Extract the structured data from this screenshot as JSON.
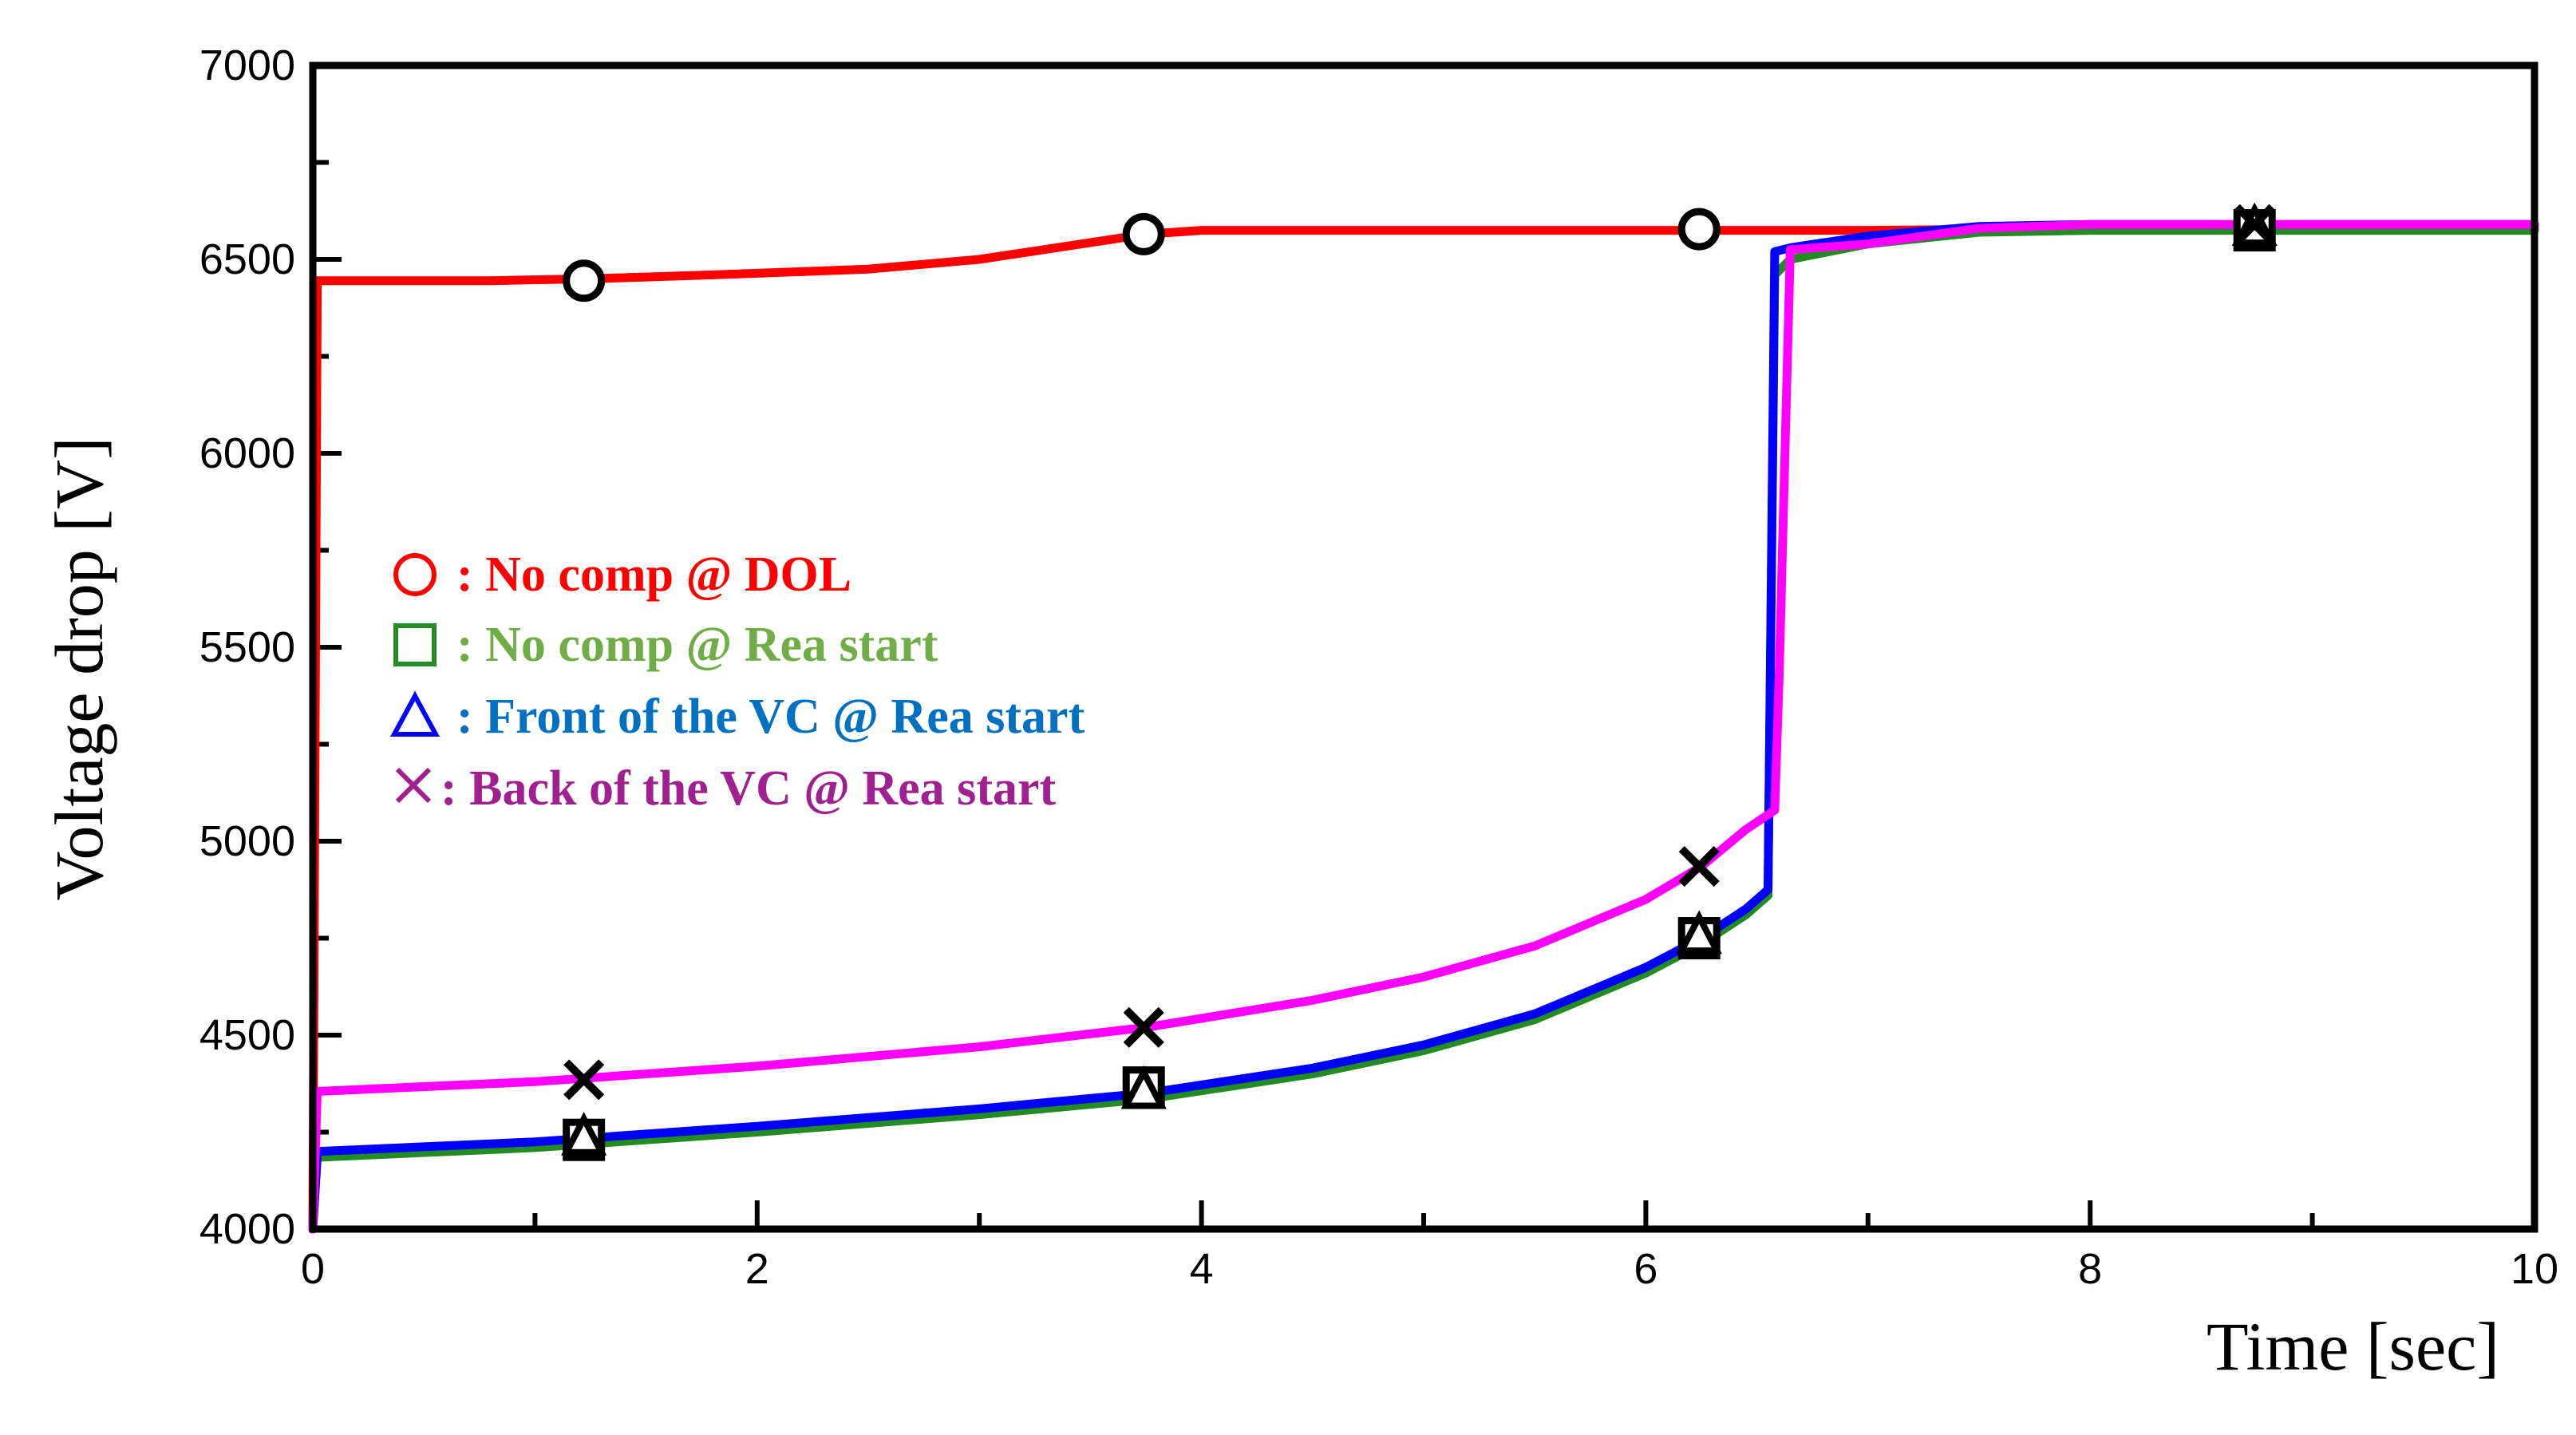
{
  "chart_data": {
    "type": "line",
    "title": "",
    "xlabel": "Time [sec]",
    "ylabel": "Voltage drop [V]",
    "xlim": [
      0,
      10
    ],
    "ylim": [
      4000,
      7000
    ],
    "x_ticks": [
      "0",
      "2",
      "4",
      "6",
      "8",
      "10"
    ],
    "y_ticks": [
      "4000",
      "4500",
      "5000",
      "5500",
      "6000",
      "6500",
      "7000"
    ],
    "grid": false,
    "legend_position": "center-left",
    "series": [
      {
        "name": "No comp @ DOL",
        "legend_label": ": No comp @ DOL",
        "legend_symbol": "circle",
        "color": "#ff0000",
        "legend_color": "#ff0000",
        "x": [
          0,
          0.02,
          0.8,
          1.25,
          1.8,
          2.5,
          3.0,
          3.75,
          4.0,
          5.0,
          6.0,
          6.25,
          7.0,
          8.0,
          10.0
        ],
        "y": [
          4000,
          6445,
          6445,
          6450,
          6460,
          6475,
          6500,
          6565,
          6575,
          6575,
          6575,
          6575,
          6575,
          6580,
          6580
        ],
        "marker_x": [
          1.22,
          3.74,
          6.24
        ],
        "marker_y": [
          6445,
          6565,
          6578
        ]
      },
      {
        "name": "No comp @ Rea start",
        "legend_label": ": No comp @ Rea start",
        "legend_symbol": "square",
        "color": "#228b22",
        "legend_color": "#70ad47",
        "x": [
          0,
          0.02,
          1.0,
          2.0,
          3.0,
          3.75,
          4.5,
          5.0,
          5.5,
          6.0,
          6.25,
          6.45,
          6.55,
          6.58,
          6.65,
          7.0,
          7.5,
          8.0,
          10.0
        ],
        "y": [
          4000,
          4185,
          4210,
          4250,
          4295,
          4335,
          4400,
          4460,
          4540,
          4660,
          4735,
          4810,
          4860,
          6460,
          6500,
          6540,
          6570,
          6575,
          6575
        ],
        "marker_x": [
          1.22,
          3.74,
          6.24,
          8.74
        ],
        "marker_y": [
          4230,
          4365,
          4750,
          6575
        ]
      },
      {
        "name": "Front of the VC @ Rea start",
        "legend_label": ": Front of the VC @ Rea start",
        "legend_symbol": "triangle",
        "color": "#0000ff",
        "legend_color": "#0070c0",
        "x": [
          0,
          0.02,
          1.0,
          2.0,
          3.0,
          3.75,
          4.5,
          5.0,
          5.5,
          6.0,
          6.25,
          6.45,
          6.55,
          6.58,
          6.65,
          7.0,
          7.5,
          8.0,
          10.0
        ],
        "y": [
          4000,
          4200,
          4225,
          4265,
          4310,
          4350,
          4415,
          4475,
          4555,
          4675,
          4750,
          4825,
          4875,
          6520,
          6530,
          6560,
          6585,
          6590,
          6590
        ],
        "marker_x": [
          1.22,
          3.74,
          6.24,
          8.74
        ],
        "marker_y": [
          4235,
          4355,
          4755,
          6580
        ]
      },
      {
        "name": "Back of the VC @ Rea start",
        "legend_label": ": Back of the VC @ Rea start",
        "legend_symbol": "cross",
        "color": "#ff00ff",
        "legend_color": "#a0208f",
        "x": [
          0,
          0.02,
          1.0,
          2.0,
          3.0,
          3.75,
          4.5,
          5.0,
          5.5,
          6.0,
          6.25,
          6.45,
          6.58,
          6.6,
          6.65,
          7.0,
          7.5,
          8.0,
          10.0
        ],
        "y": [
          4000,
          4355,
          4380,
          4420,
          4470,
          4520,
          4590,
          4650,
          4730,
          4850,
          4935,
          5030,
          5080,
          5420,
          6525,
          6540,
          6580,
          6590,
          6590
        ],
        "marker_x": [
          1.22,
          3.74,
          6.24,
          8.74
        ],
        "marker_y": [
          4385,
          4520,
          4935,
          6590
        ]
      }
    ]
  }
}
